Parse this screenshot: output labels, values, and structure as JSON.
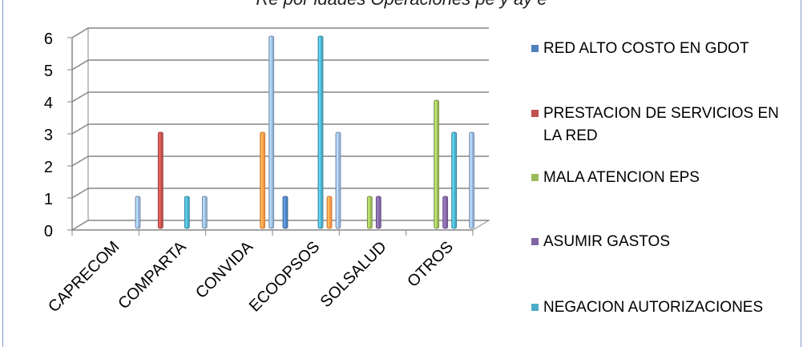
{
  "title_cut": "Re         por        idades     Operaciones       pe     y   ay     e",
  "chart_data": {
    "type": "bar",
    "categories": [
      "CAPRECOM",
      "COMPARTA",
      "CONVIDA",
      "ECOOPSOS",
      "SOLSALUD",
      "OTROS"
    ],
    "ylim": [
      0,
      6
    ],
    "yticks": [
      "0",
      "1",
      "2",
      "3",
      "4",
      "5",
      "6"
    ],
    "legend_position": "right",
    "grid": true,
    "series": [
      {
        "name": "RED ALTO COSTO EN GDOT",
        "color": "#4f81bd",
        "values": [
          0,
          0,
          0,
          1,
          0,
          0
        ]
      },
      {
        "name": "PRESTACION DE SERVICIOS EN LA RED",
        "color": "#c0504d",
        "values": [
          0,
          3,
          0,
          0,
          0,
          0
        ]
      },
      {
        "name": "MALA ATENCION EPS",
        "color": "#9bbb59",
        "values": [
          0,
          0,
          0,
          0,
          1,
          4
        ]
      },
      {
        "name": "ASUMIR GASTOS",
        "color": "#8064a2",
        "values": [
          0,
          0,
          0,
          0,
          1,
          1
        ]
      },
      {
        "name": "NEGACION AUTORIZACIONES",
        "color": "#4bacc6",
        "values": [
          0,
          1,
          0,
          6,
          0,
          3
        ]
      },
      {
        "name": "",
        "color": "#f79646",
        "values": [
          0,
          0,
          3,
          1,
          0,
          0
        ]
      },
      {
        "name": "",
        "color": "#95b3d7",
        "values": [
          1,
          1,
          6,
          3,
          0,
          3
        ]
      }
    ]
  }
}
